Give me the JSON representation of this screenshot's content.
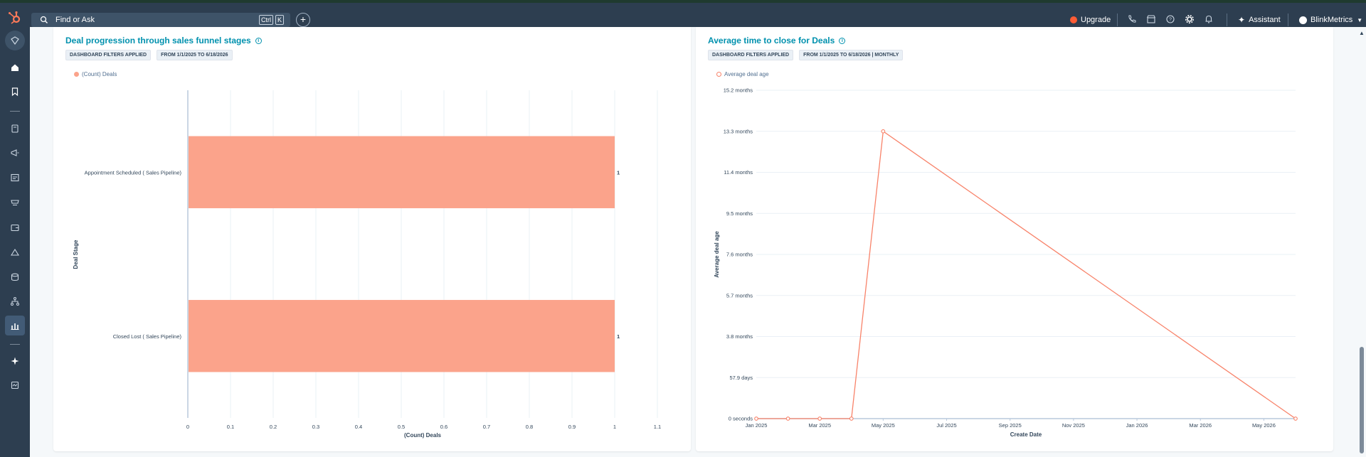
{
  "topbar": {
    "search_placeholder": "Find or Ask",
    "kbd_ctrl": "Ctrl",
    "kbd_k": "K",
    "upgrade_label": "Upgrade",
    "assistant_label": "Assistant",
    "account_name": "BlinkMetrics"
  },
  "sidebar": {
    "items": [
      "bookmark-icon",
      "home-icon",
      "bookmarks-icon",
      "contacts-icon",
      "marketing-icon",
      "content-icon",
      "commerce-icon",
      "sales-icon",
      "service-icon",
      "data-icon",
      "automation-icon",
      "reporting-icon",
      "ai-icon",
      "more-icon"
    ]
  },
  "cards": [
    {
      "title": "Deal progression through sales funnel stages",
      "tags": [
        "DASHBOARD FILTERS APPLIED",
        "FROM 1/1/2025 TO 6/18/2026"
      ],
      "legend": "(Count) Deals",
      "chart_data": {
        "type": "bar",
        "orientation": "horizontal",
        "categories": [
          "Appointment Scheduled ( Sales Pipeline)",
          "Closed Lost ( Sales Pipeline)"
        ],
        "series": [
          {
            "name": "(Count) Deals",
            "values": [
              1,
              1
            ]
          }
        ],
        "data_labels": [
          "1",
          "1"
        ],
        "xlabel": "(Count) Deals",
        "ylabel": "Deal Stage",
        "xlim": [
          0,
          1.1
        ],
        "xticks": [
          "0",
          "0.1",
          "0.2",
          "0.3",
          "0.4",
          "0.5",
          "0.6",
          "0.7",
          "0.8",
          "0.9",
          "1",
          "1.1"
        ],
        "grid": true,
        "legend_position": "top-left",
        "color": "#fba38b"
      }
    },
    {
      "title": "Average time to close for Deals",
      "tags": [
        "DASHBOARD FILTERS APPLIED",
        "FROM 1/1/2025 TO 6/18/2026 | MONTHLY"
      ],
      "legend": "Average deal age",
      "chart_data": {
        "type": "line",
        "x": [
          "2025-01",
          "2025-02",
          "2025-03",
          "2025-04",
          "2025-05",
          "2026-06"
        ],
        "series": [
          {
            "name": "Average deal age",
            "values_months": [
              0,
              0,
              0,
              0,
              13.3,
              0
            ]
          }
        ],
        "xlabel": "Create Date",
        "ylabel": "Average deal age",
        "ylim_months": [
          0,
          15.2
        ],
        "yticks": [
          "0 seconds",
          "57.9 days",
          "3.8 months",
          "5.7 months",
          "7.6 months",
          "9.5 months",
          "11.4 months",
          "13.3 months",
          "15.2 months"
        ],
        "xticks": [
          "Jan 2025",
          "Mar 2025",
          "May 2025",
          "Jul 2025",
          "Sep 2025",
          "Nov 2025",
          "Jan 2026",
          "Mar 2026",
          "May 2026"
        ],
        "grid": true,
        "legend_position": "top-left",
        "color": "#f8836a"
      }
    }
  ]
}
